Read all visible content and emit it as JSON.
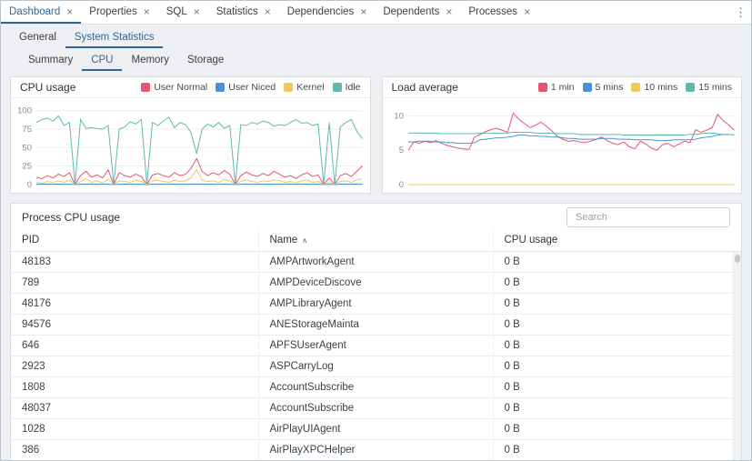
{
  "tabbar": {
    "tabs": [
      {
        "label": "Dashboard",
        "active": true
      },
      {
        "label": "Properties",
        "active": false
      },
      {
        "label": "SQL",
        "active": false
      },
      {
        "label": "Statistics",
        "active": false
      },
      {
        "label": "Dependencies",
        "active": false
      },
      {
        "label": "Dependents",
        "active": false
      },
      {
        "label": "Processes",
        "active": false
      }
    ],
    "close_icon": "×",
    "menu_icon": "⋮"
  },
  "subtabs": {
    "general": "General",
    "system_statistics": "System Statistics"
  },
  "stat_tabs": {
    "summary": "Summary",
    "cpu": "CPU",
    "memory": "Memory",
    "storage": "Storage"
  },
  "chart_data": [
    {
      "type": "line",
      "title": "CPU usage",
      "xlabel": "",
      "ylabel": "",
      "ylim": [
        0,
        107
      ],
      "yticks": [
        0,
        25,
        50,
        75,
        100
      ],
      "grid": true,
      "legend_position": "top-right",
      "series": [
        {
          "name": "User Normal",
          "color": "#e2566f",
          "values": [
            10,
            8,
            12,
            9,
            14,
            11,
            16,
            0,
            12,
            18,
            10,
            13,
            9,
            20,
            0,
            16,
            12,
            10,
            14,
            11,
            0,
            13,
            15,
            12,
            10,
            16,
            12,
            14,
            22,
            35,
            18,
            12,
            16,
            13,
            19,
            14,
            0,
            12,
            17,
            13,
            11,
            15,
            12,
            18,
            14,
            10,
            12,
            8,
            13,
            16,
            11,
            13,
            0,
            9,
            0,
            12,
            15,
            11,
            18,
            25
          ]
        },
        {
          "name": "User Niced",
          "color": "#4a90d9",
          "values": [
            0.5,
            0.5,
            0.5,
            0.5,
            0.5,
            0.5,
            0.5,
            0,
            0.5,
            0.5,
            0.5,
            0.5,
            0.5,
            0.5,
            0,
            0.5,
            0.5,
            0.5,
            0.5,
            0.5,
            0,
            0.5,
            0.5,
            0.5,
            0.5,
            0.5,
            0.5,
            0.5,
            0.5,
            0.5,
            0.5,
            0.5,
            0.5,
            0.5,
            0.5,
            0.5,
            0,
            0.5,
            0.5,
            0.5,
            0.5,
            0.5,
            0.5,
            0.5,
            0.5,
            0.5,
            0.5,
            0.5,
            0.5,
            0.5,
            0.5,
            0.5,
            0,
            0.5,
            0,
            0.5,
            0.5,
            0.5,
            0.5,
            0.5
          ]
        },
        {
          "name": "Kernel",
          "color": "#edc95e",
          "values": [
            3,
            2,
            4,
            3,
            5,
            3,
            6,
            0,
            4,
            8,
            3,
            5,
            2,
            7,
            0,
            5,
            4,
            3,
            6,
            4,
            0,
            5,
            6,
            4,
            3,
            6,
            4,
            5,
            9,
            20,
            6,
            4,
            5,
            3,
            7,
            5,
            0,
            4,
            6,
            4,
            3,
            5,
            4,
            6,
            5,
            3,
            4,
            2,
            5,
            6,
            3,
            4,
            0,
            3,
            0,
            4,
            5,
            3,
            6,
            8
          ]
        },
        {
          "name": "Idle",
          "color": "#5eb9af",
          "values": [
            84,
            88,
            90,
            86,
            93,
            80,
            84,
            0,
            88,
            76,
            77,
            76,
            75,
            80,
            0,
            75,
            78,
            85,
            82,
            88,
            0,
            84,
            80,
            86,
            91,
            77,
            84,
            81,
            70,
            42,
            75,
            82,
            78,
            84,
            76,
            80,
            0,
            81,
            80,
            84,
            82,
            86,
            84,
            79,
            81,
            80,
            84,
            88,
            83,
            84,
            80,
            82,
            0,
            84,
            0,
            78,
            84,
            88,
            72,
            62
          ]
        }
      ]
    },
    {
      "type": "line",
      "title": "Load average",
      "xlabel": "",
      "ylabel": "",
      "ylim": [
        0,
        11.5
      ],
      "yticks": [
        0,
        5,
        10
      ],
      "grid": true,
      "legend_position": "top-right",
      "series": [
        {
          "name": "1 min",
          "color": "#e2566f",
          "values": [
            5.0,
            6.2,
            6.0,
            6.3,
            6.1,
            6.4,
            6.0,
            5.7,
            5.5,
            5.3,
            5.2,
            5.1,
            6.9,
            7.3,
            7.7,
            8.0,
            8.2,
            7.9,
            7.6,
            10.4,
            9.5,
            8.9,
            8.3,
            8.6,
            9.1,
            8.5,
            7.8,
            7.0,
            6.6,
            6.3,
            6.4,
            6.2,
            6.1,
            6.3,
            6.6,
            6.9,
            6.4,
            6.0,
            5.8,
            6.2,
            5.5,
            5.2,
            6.3,
            5.9,
            5.3,
            5.0,
            5.8,
            6.0,
            5.5,
            5.9,
            6.3,
            6.1,
            8.0,
            7.6,
            7.9,
            8.3,
            10.2,
            9.3,
            8.7,
            7.9
          ]
        },
        {
          "name": "5 mins",
          "color": "#4a90d9",
          "values": [
            6.2,
            6.2,
            6.3,
            6.3,
            6.3,
            6.2,
            6.2,
            6.1,
            6.1,
            6.0,
            6.0,
            6.0,
            6.1,
            6.5,
            6.6,
            6.7,
            6.8,
            6.8,
            6.9,
            7.0,
            7.2,
            7.2,
            7.1,
            7.1,
            7.0,
            7.0,
            6.9,
            6.9,
            6.8,
            6.7,
            6.7,
            6.6,
            6.6,
            6.6,
            6.6,
            6.7,
            6.7,
            6.7,
            6.6,
            6.6,
            6.6,
            6.5,
            6.5,
            6.5,
            6.5,
            6.4,
            6.4,
            6.4,
            6.5,
            6.5,
            6.5,
            6.5,
            6.6,
            6.8,
            6.9,
            7.0,
            7.2,
            7.3,
            7.3,
            7.2
          ]
        },
        {
          "name": "10 mins",
          "color": "#edc95e",
          "values": [
            0,
            0,
            0,
            0,
            0,
            0,
            0,
            0,
            0,
            0,
            0,
            0,
            0,
            0,
            0,
            0,
            0,
            0,
            0,
            0,
            0,
            0,
            0,
            0,
            0,
            0,
            0,
            0,
            0,
            0,
            0,
            0,
            0,
            0,
            0,
            0,
            0,
            0,
            0,
            0,
            0,
            0,
            0,
            0,
            0,
            0,
            0,
            0,
            0,
            0,
            0,
            0,
            0,
            0,
            0,
            0,
            0,
            0,
            0,
            0
          ]
        },
        {
          "name": "15 mins",
          "color": "#5eb9af",
          "values": [
            7.5,
            7.5,
            7.5,
            7.5,
            7.5,
            7.5,
            7.4,
            7.4,
            7.4,
            7.4,
            7.4,
            7.4,
            7.4,
            7.5,
            7.5,
            7.5,
            7.5,
            7.5,
            7.5,
            7.6,
            7.6,
            7.6,
            7.6,
            7.5,
            7.5,
            7.5,
            7.5,
            7.4,
            7.4,
            7.4,
            7.4,
            7.3,
            7.3,
            7.3,
            7.3,
            7.3,
            7.3,
            7.3,
            7.3,
            7.2,
            7.2,
            7.2,
            7.2,
            7.2,
            7.2,
            7.2,
            7.2,
            7.2,
            7.2,
            7.2,
            7.2,
            7.3,
            7.3,
            7.4,
            7.5,
            7.5,
            7.4,
            7.3,
            7.3,
            7.2
          ]
        }
      ]
    }
  ],
  "process_table": {
    "title": "Process CPU usage",
    "search_placeholder": "Search",
    "sort_icon": "∧",
    "columns": [
      {
        "label": "PID",
        "sort": null
      },
      {
        "label": "Name",
        "sort": "asc"
      },
      {
        "label": "CPU usage",
        "sort": null
      }
    ],
    "rows": [
      [
        "48183",
        "AMPArtworkAgent",
        "0 B"
      ],
      [
        "789",
        "AMPDeviceDiscove",
        "0 B"
      ],
      [
        "48176",
        "AMPLibraryAgent",
        "0 B"
      ],
      [
        "94576",
        "ANEStorageMainta",
        "0 B"
      ],
      [
        "646",
        "APFSUserAgent",
        "0 B"
      ],
      [
        "2923",
        "ASPCarryLog",
        "0 B"
      ],
      [
        "1808",
        "AccountSubscribe",
        "0 B"
      ],
      [
        "48037",
        "AccountSubscribe",
        "0 B"
      ],
      [
        "1028",
        "AirPlayUIAgent",
        "0 B"
      ],
      [
        "386",
        "AirPlayXPCHelper",
        "0 B"
      ]
    ]
  },
  "colors": {
    "accent": "#326690",
    "page_background": "#edeff2",
    "panel_border": "#d9dde1",
    "series_pink": "#e2566f",
    "series_blue": "#4a90d9",
    "series_yellow": "#edc95e",
    "series_teal": "#5eb9af"
  }
}
